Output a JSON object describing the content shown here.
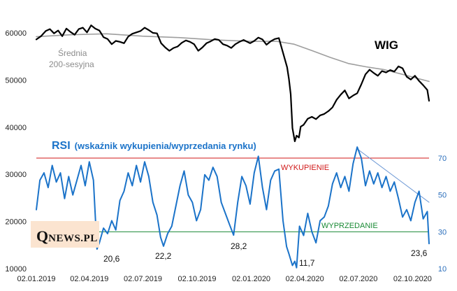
{
  "chart_data": {
    "type": "line",
    "title": "WIG",
    "x_ticks": [
      "02.01.2019",
      "02.04.2019",
      "02.07.2019",
      "02.10.2019",
      "02.01.2020",
      "02.04.2020",
      "02.07.2020",
      "02.10.2020"
    ],
    "y_left_ticks": [
      "60000",
      "50000",
      "40000",
      "30000",
      "20000",
      "10000"
    ],
    "y_left_range": [
      10000,
      60000
    ],
    "y_right_ticks": [
      "70",
      "50",
      "30",
      "10"
    ],
    "y_right_range": [
      10,
      70
    ],
    "legend_ma": [
      "Średnia",
      "200-sesyjna"
    ],
    "rsi_title": "RSI",
    "rsi_subtitle": "(wskaźnik wykupienia/wyprzedania rynku)",
    "levels": {
      "overbought": {
        "label": "WYKUPIENIE",
        "value": 70,
        "color": "#d01818"
      },
      "oversold": {
        "label": "WYPRZEDANIE",
        "value": 30,
        "color": "#1a8a35"
      }
    },
    "annotations": [
      {
        "text": "20,6",
        "date": "2019-04-15",
        "value": 20.6
      },
      {
        "text": "22,2",
        "date": "2019-08-06",
        "value": 22.2
      },
      {
        "text": "28,2",
        "date": "2019-12-03",
        "value": 28.2
      },
      {
        "text": "11,7",
        "date": "2020-03-12",
        "value": 11.7
      },
      {
        "text": "23,6",
        "date": "2020-10-30",
        "value": 23.6
      }
    ],
    "series": [
      {
        "name": "WIG",
        "color": "#000000",
        "axis": "left",
        "points": [
          [
            "2019-01-02",
            58600
          ],
          [
            "2019-01-10",
            59300
          ],
          [
            "2019-01-18",
            60400
          ],
          [
            "2019-01-25",
            60800
          ],
          [
            "2019-02-01",
            59900
          ],
          [
            "2019-02-08",
            60500
          ],
          [
            "2019-02-15",
            59300
          ],
          [
            "2019-02-22",
            60900
          ],
          [
            "2019-03-01",
            60200
          ],
          [
            "2019-03-08",
            59600
          ],
          [
            "2019-03-15",
            60800
          ],
          [
            "2019-03-22",
            61100
          ],
          [
            "2019-03-29",
            60100
          ],
          [
            "2019-04-05",
            61600
          ],
          [
            "2019-04-12",
            60900
          ],
          [
            "2019-04-19",
            60500
          ],
          [
            "2019-04-26",
            59100
          ],
          [
            "2019-05-03",
            58700
          ],
          [
            "2019-05-10",
            57600
          ],
          [
            "2019-05-17",
            58300
          ],
          [
            "2019-05-24",
            58100
          ],
          [
            "2019-05-31",
            57800
          ],
          [
            "2019-06-07",
            59200
          ],
          [
            "2019-06-14",
            59800
          ],
          [
            "2019-06-21",
            60100
          ],
          [
            "2019-06-28",
            60400
          ],
          [
            "2019-07-05",
            61100
          ],
          [
            "2019-07-12",
            60600
          ],
          [
            "2019-07-19",
            60000
          ],
          [
            "2019-07-26",
            59900
          ],
          [
            "2019-08-02",
            57800
          ],
          [
            "2019-08-09",
            56900
          ],
          [
            "2019-08-16",
            56200
          ],
          [
            "2019-08-23",
            56800
          ],
          [
            "2019-08-30",
            57100
          ],
          [
            "2019-09-06",
            57900
          ],
          [
            "2019-09-13",
            58400
          ],
          [
            "2019-09-20",
            58100
          ],
          [
            "2019-09-27",
            57600
          ],
          [
            "2019-10-04",
            56200
          ],
          [
            "2019-10-11",
            56900
          ],
          [
            "2019-10-18",
            57800
          ],
          [
            "2019-10-25",
            58200
          ],
          [
            "2019-11-01",
            58700
          ],
          [
            "2019-11-08",
            58500
          ],
          [
            "2019-11-15",
            57600
          ],
          [
            "2019-11-22",
            57300
          ],
          [
            "2019-11-29",
            56800
          ],
          [
            "2019-12-06",
            57600
          ],
          [
            "2019-12-13",
            58100
          ],
          [
            "2019-12-20",
            58500
          ],
          [
            "2019-12-31",
            57800
          ],
          [
            "2020-01-07",
            58300
          ],
          [
            "2020-01-14",
            59000
          ],
          [
            "2020-01-21",
            58600
          ],
          [
            "2020-01-28",
            57500
          ],
          [
            "2020-02-04",
            58200
          ],
          [
            "2020-02-11",
            58700
          ],
          [
            "2020-02-18",
            58900
          ],
          [
            "2020-02-25",
            55800
          ],
          [
            "2020-03-03",
            52700
          ],
          [
            "2020-03-06",
            50200
          ],
          [
            "2020-03-09",
            47000
          ],
          [
            "2020-03-12",
            39800
          ],
          [
            "2020-03-16",
            37000
          ],
          [
            "2020-03-19",
            38200
          ],
          [
            "2020-03-23",
            37800
          ],
          [
            "2020-03-26",
            40100
          ],
          [
            "2020-03-31",
            40500
          ],
          [
            "2020-04-07",
            41800
          ],
          [
            "2020-04-14",
            42200
          ],
          [
            "2020-04-21",
            41700
          ],
          [
            "2020-04-28",
            42500
          ],
          [
            "2020-05-05",
            42800
          ],
          [
            "2020-05-12",
            43400
          ],
          [
            "2020-05-19",
            44200
          ],
          [
            "2020-05-26",
            45800
          ],
          [
            "2020-06-02",
            46900
          ],
          [
            "2020-06-09",
            47800
          ],
          [
            "2020-06-16",
            46100
          ],
          [
            "2020-06-23",
            46700
          ],
          [
            "2020-06-30",
            47200
          ],
          [
            "2020-07-07",
            49100
          ],
          [
            "2020-07-14",
            51200
          ],
          [
            "2020-07-21",
            52200
          ],
          [
            "2020-07-28",
            51500
          ],
          [
            "2020-08-04",
            50900
          ],
          [
            "2020-08-11",
            51900
          ],
          [
            "2020-08-18",
            51600
          ],
          [
            "2020-08-25",
            52100
          ],
          [
            "2020-09-01",
            51800
          ],
          [
            "2020-09-08",
            52900
          ],
          [
            "2020-09-15",
            52500
          ],
          [
            "2020-09-22",
            50700
          ],
          [
            "2020-09-29",
            50100
          ],
          [
            "2020-10-06",
            50900
          ],
          [
            "2020-10-13",
            49800
          ],
          [
            "2020-10-20",
            48900
          ],
          [
            "2020-10-27",
            47900
          ],
          [
            "2020-10-30",
            45600
          ]
        ]
      },
      {
        "name": "Średnia 200-sesyjna",
        "color": "#9e9e9e",
        "axis": "left",
        "points": [
          [
            "2019-01-02",
            59200
          ],
          [
            "2019-03-01",
            59600
          ],
          [
            "2019-05-01",
            59800
          ],
          [
            "2019-07-01",
            59300
          ],
          [
            "2019-09-01",
            59000
          ],
          [
            "2019-11-01",
            58500
          ],
          [
            "2019-12-31",
            58200
          ],
          [
            "2020-02-14",
            58200
          ],
          [
            "2020-03-15",
            57600
          ],
          [
            "2020-04-15",
            56200
          ],
          [
            "2020-05-15",
            54800
          ],
          [
            "2020-06-15",
            53500
          ],
          [
            "2020-07-15",
            52800
          ],
          [
            "2020-08-15",
            52200
          ],
          [
            "2020-09-15",
            51200
          ],
          [
            "2020-10-15",
            50200
          ],
          [
            "2020-10-30",
            49700
          ]
        ]
      },
      {
        "name": "RSI",
        "color": "#1b73c9",
        "axis": "right",
        "points": [
          [
            "2019-01-02",
            42
          ],
          [
            "2019-01-08",
            58
          ],
          [
            "2019-01-15",
            62
          ],
          [
            "2019-01-22",
            54
          ],
          [
            "2019-01-29",
            66
          ],
          [
            "2019-02-05",
            57
          ],
          [
            "2019-02-12",
            62
          ],
          [
            "2019-02-19",
            48
          ],
          [
            "2019-02-26",
            60
          ],
          [
            "2019-03-05",
            50
          ],
          [
            "2019-03-12",
            58
          ],
          [
            "2019-03-19",
            66
          ],
          [
            "2019-03-26",
            55
          ],
          [
            "2019-04-02",
            68
          ],
          [
            "2019-04-09",
            58
          ],
          [
            "2019-04-15",
            20.6
          ],
          [
            "2019-04-19",
            24
          ],
          [
            "2019-04-26",
            32
          ],
          [
            "2019-05-03",
            29
          ],
          [
            "2019-05-10",
            36
          ],
          [
            "2019-05-17",
            31
          ],
          [
            "2019-05-24",
            47
          ],
          [
            "2019-05-31",
            52
          ],
          [
            "2019-06-07",
            62
          ],
          [
            "2019-06-14",
            55
          ],
          [
            "2019-06-21",
            66
          ],
          [
            "2019-06-28",
            57
          ],
          [
            "2019-07-05",
            68
          ],
          [
            "2019-07-12",
            60
          ],
          [
            "2019-07-19",
            46
          ],
          [
            "2019-07-26",
            39
          ],
          [
            "2019-08-01",
            27
          ],
          [
            "2019-08-06",
            22.2
          ],
          [
            "2019-08-13",
            29
          ],
          [
            "2019-08-20",
            33
          ],
          [
            "2019-08-27",
            44
          ],
          [
            "2019-09-03",
            55
          ],
          [
            "2019-09-10",
            63
          ],
          [
            "2019-09-17",
            50
          ],
          [
            "2019-09-24",
            46
          ],
          [
            "2019-10-01",
            36
          ],
          [
            "2019-10-08",
            42
          ],
          [
            "2019-10-15",
            61
          ],
          [
            "2019-10-22",
            58
          ],
          [
            "2019-10-29",
            65
          ],
          [
            "2019-11-05",
            60
          ],
          [
            "2019-11-12",
            46
          ],
          [
            "2019-11-19",
            40
          ],
          [
            "2019-11-26",
            34
          ],
          [
            "2019-12-03",
            28.2
          ],
          [
            "2019-12-10",
            46
          ],
          [
            "2019-12-17",
            60
          ],
          [
            "2019-12-24",
            55
          ],
          [
            "2019-12-31",
            45
          ],
          [
            "2020-01-07",
            62
          ],
          [
            "2020-01-14",
            71
          ],
          [
            "2020-01-21",
            54
          ],
          [
            "2020-01-28",
            42
          ],
          [
            "2020-02-04",
            58
          ],
          [
            "2020-02-11",
            63
          ],
          [
            "2020-02-18",
            64
          ],
          [
            "2020-02-25",
            36
          ],
          [
            "2020-03-02",
            22
          ],
          [
            "2020-03-06",
            18
          ],
          [
            "2020-03-12",
            11.7
          ],
          [
            "2020-03-16",
            14
          ],
          [
            "2020-03-19",
            10.5
          ],
          [
            "2020-03-24",
            33
          ],
          [
            "2020-03-31",
            28
          ],
          [
            "2020-04-07",
            40
          ],
          [
            "2020-04-14",
            30
          ],
          [
            "2020-04-21",
            24
          ],
          [
            "2020-04-28",
            36
          ],
          [
            "2020-05-05",
            38
          ],
          [
            "2020-05-12",
            44
          ],
          [
            "2020-05-19",
            56
          ],
          [
            "2020-05-26",
            62
          ],
          [
            "2020-06-02",
            54
          ],
          [
            "2020-06-09",
            60
          ],
          [
            "2020-06-16",
            52
          ],
          [
            "2020-06-23",
            67
          ],
          [
            "2020-06-30",
            76
          ],
          [
            "2020-07-07",
            70
          ],
          [
            "2020-07-14",
            55
          ],
          [
            "2020-07-21",
            63
          ],
          [
            "2020-07-28",
            56
          ],
          [
            "2020-08-04",
            62
          ],
          [
            "2020-08-11",
            54
          ],
          [
            "2020-08-18",
            60
          ],
          [
            "2020-08-25",
            52
          ],
          [
            "2020-09-01",
            57
          ],
          [
            "2020-09-08",
            48
          ],
          [
            "2020-09-15",
            38
          ],
          [
            "2020-09-22",
            42
          ],
          [
            "2020-09-29",
            36
          ],
          [
            "2020-10-06",
            46
          ],
          [
            "2020-10-13",
            52
          ],
          [
            "2020-10-20",
            37
          ],
          [
            "2020-10-27",
            41
          ],
          [
            "2020-10-30",
            23.6
          ]
        ]
      },
      {
        "name": "",
        "color": "#6f9ad6",
        "axis": "right",
        "points": [
          [
            "2020-06-30",
            75
          ],
          [
            "2020-10-30",
            46
          ]
        ]
      }
    ]
  },
  "logo": {
    "q": "Q",
    "rest": "NEWS.PL"
  }
}
